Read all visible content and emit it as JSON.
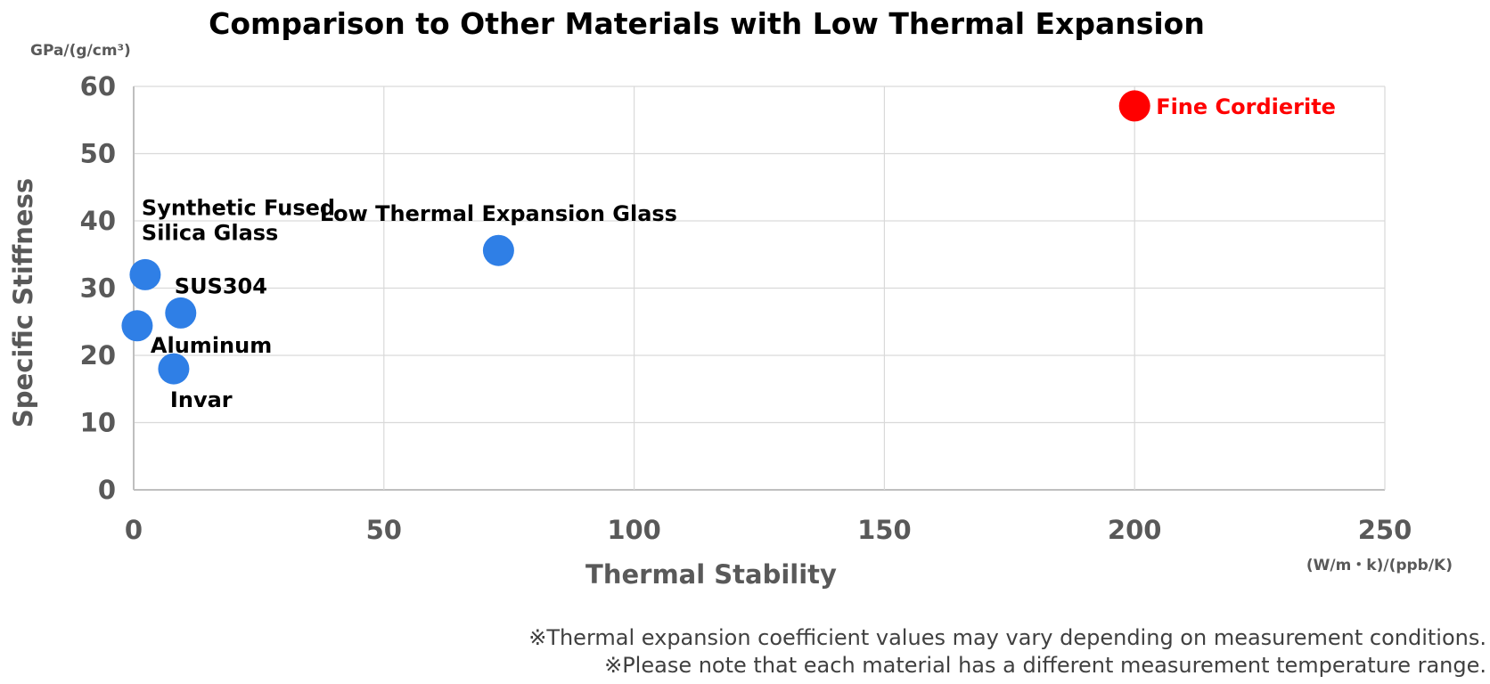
{
  "chart_data": {
    "type": "scatter",
    "title": "Comparison to Other Materials with Low Thermal Expansion",
    "xlabel": "Thermal Stability",
    "ylabel": "Specific Stiffness",
    "x_unit": "(W/m・k)/(ppb/K)",
    "y_unit": "GPa/(g/cm³)",
    "xlim": [
      0,
      250
    ],
    "ylim": [
      0,
      60
    ],
    "x_ticks": [
      "0",
      "50",
      "100",
      "150",
      "200",
      "250"
    ],
    "y_ticks": [
      "0",
      "10",
      "20",
      "30",
      "40",
      "50",
      "60"
    ],
    "grid": true,
    "points": [
      {
        "label": "Fine Cordierite",
        "x": 200,
        "y": 57.1,
        "color": "#ff0000"
      },
      {
        "label": "Low Thermal Expansion Glass",
        "x": 72.9,
        "y": 35.6,
        "color": "#2f7fe6"
      },
      {
        "label_lines": [
          "Synthetic Fused",
          "Silica Glass"
        ],
        "x": 2.3,
        "y": 32.0,
        "color": "#2f7fe6"
      },
      {
        "label": "SUS304",
        "x": 9.4,
        "y": 26.3,
        "color": "#2f7fe6"
      },
      {
        "label": "Aluminum",
        "x": 0.7,
        "y": 24.4,
        "color": "#2f7fe6"
      },
      {
        "label": "Invar",
        "x": 8.0,
        "y": 18.0,
        "color": "#2f7fe6"
      }
    ]
  },
  "notes": [
    "※Thermal expansion coefficient values may vary depending on measurement conditions.",
    "※Please note that each material has a different measurement temperature range."
  ]
}
